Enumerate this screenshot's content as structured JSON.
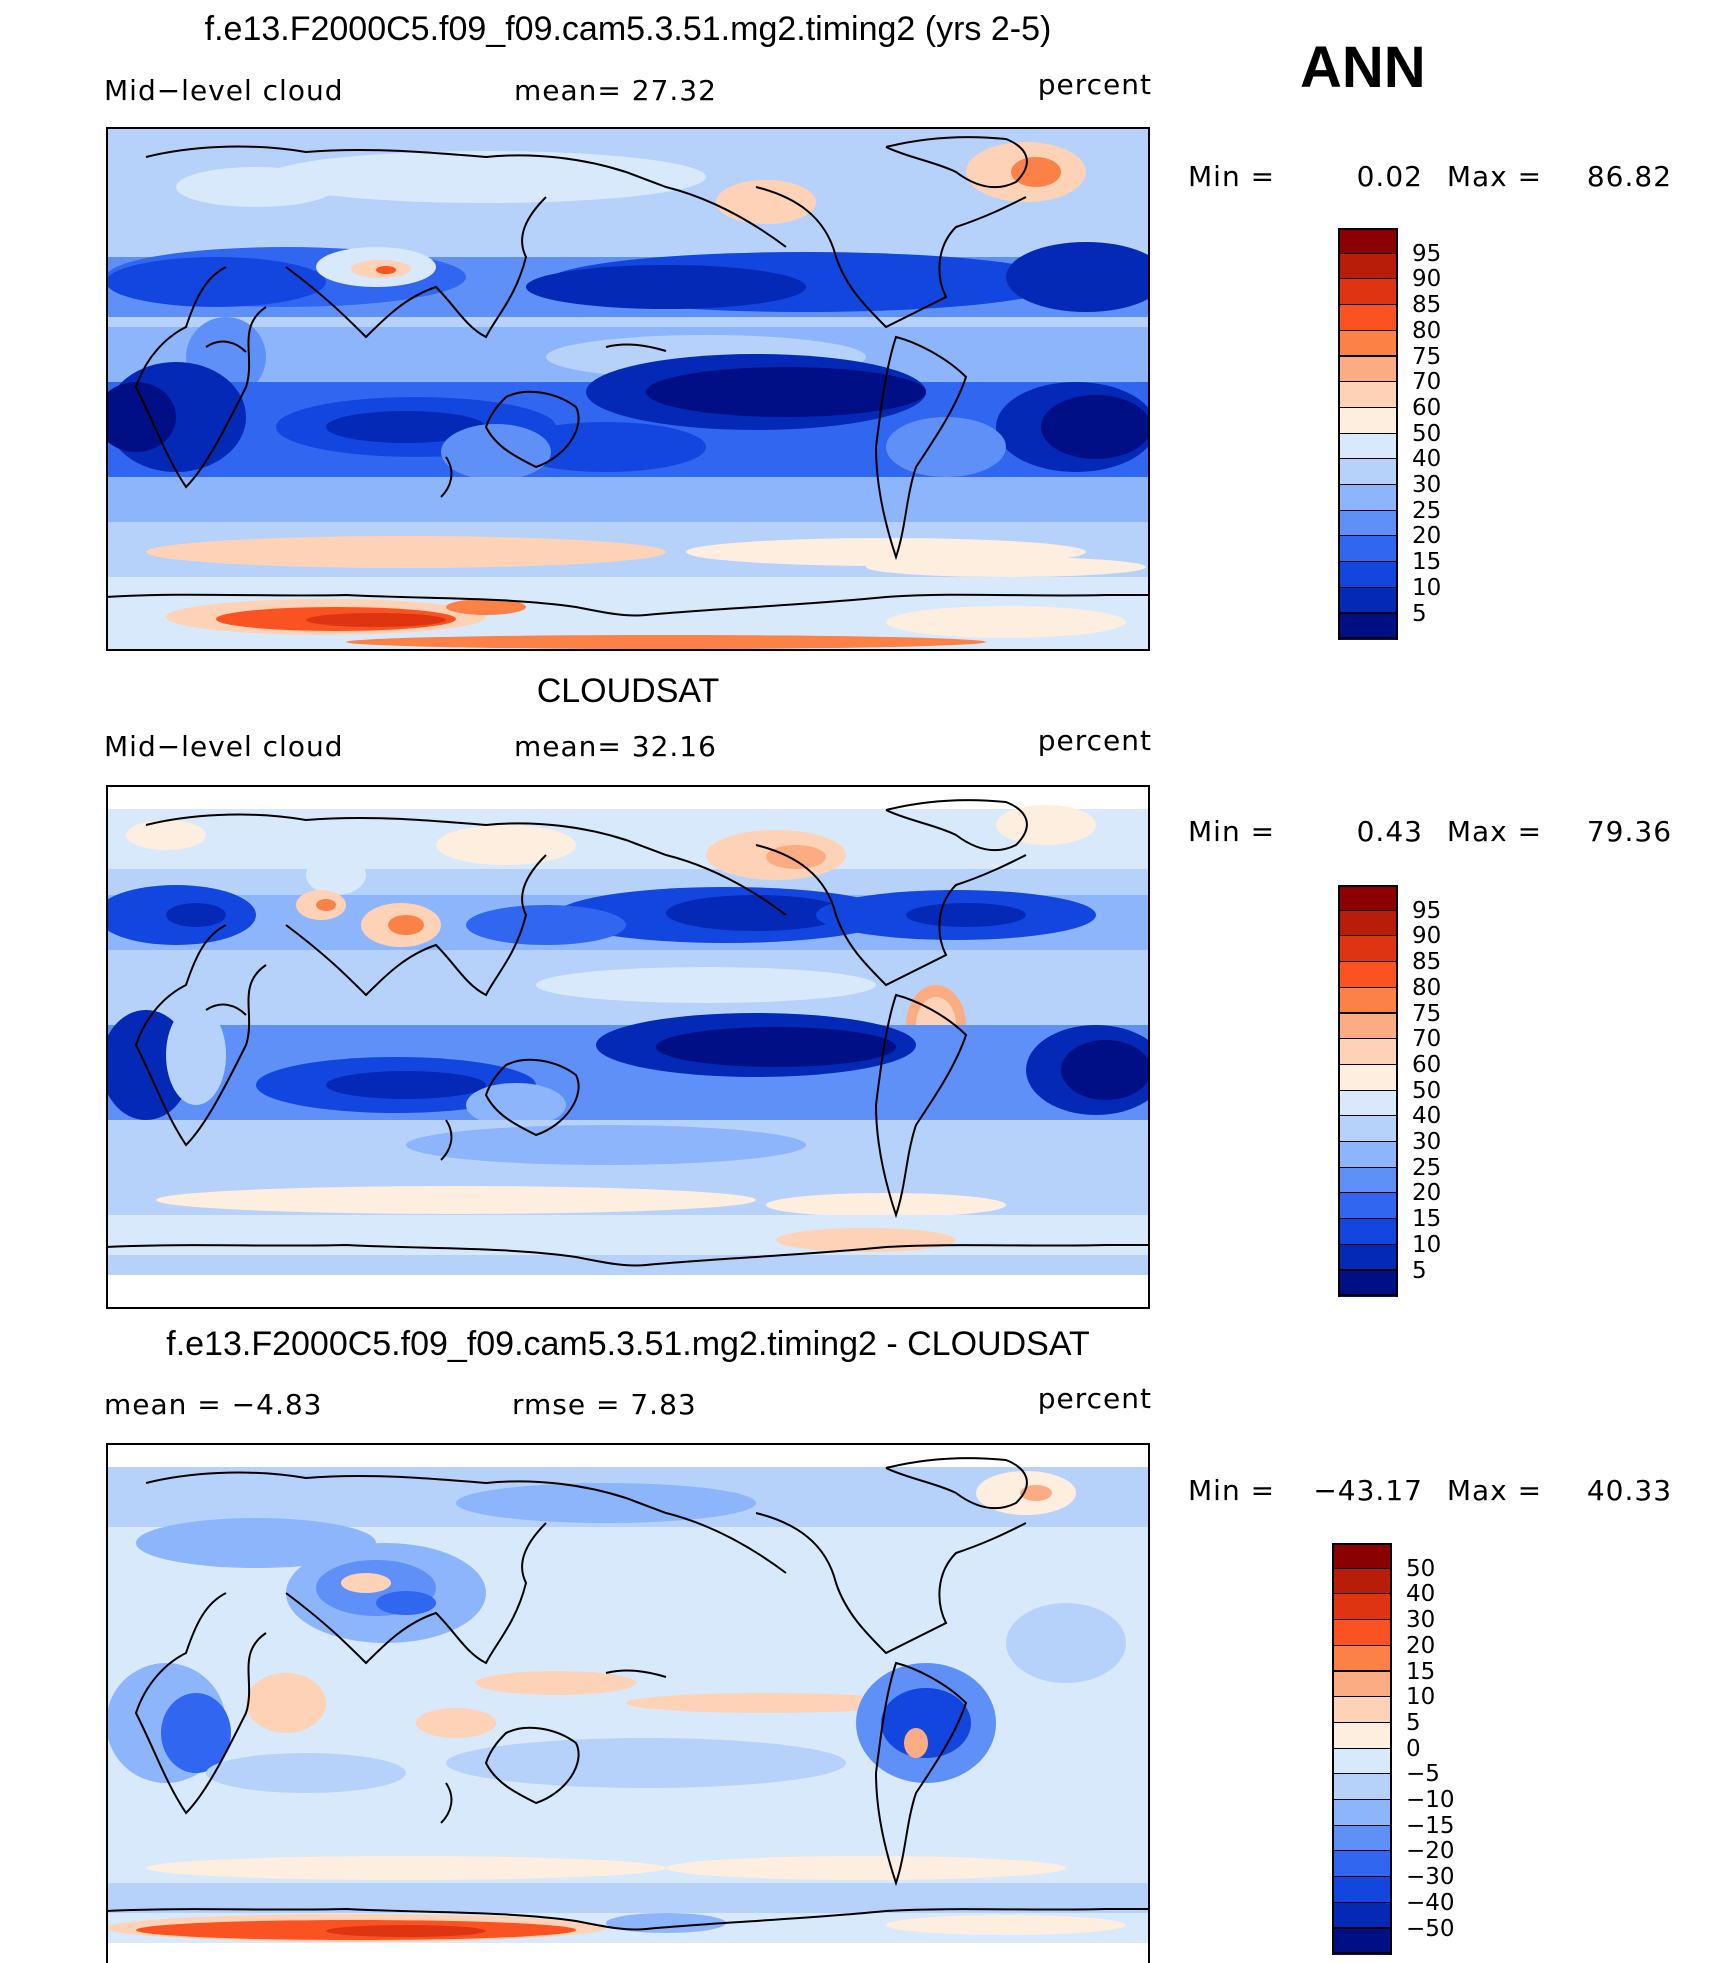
{
  "season": "ANN",
  "panels": [
    {
      "id": "model",
      "title": "f.e13.F2000C5.f09_f09.cam5.3.51.mg2.timing2 (yrs 2-5)",
      "left_label": "Mid−level  cloud",
      "center_label": "mean=   27.32",
      "right_label": "percent",
      "min_label": "Min  =",
      "min_value": "0.02",
      "max_label": "Max  =",
      "max_value": "86.82",
      "colorbar_ticks": [
        "95",
        "90",
        "85",
        "80",
        "75",
        "70",
        "60",
        "50",
        "40",
        "30",
        "25",
        "20",
        "15",
        "10",
        "5"
      ],
      "colorbar_colors": [
        "#8b0000",
        "#b81d0a",
        "#de3412",
        "#fa5220",
        "#fc8147",
        "#fcac82",
        "#fdd2b6",
        "#fdeedf",
        "#d8e9fb",
        "#b6d2fb",
        "#8db5fb",
        "#5f90f8",
        "#3066f0",
        "#1346df",
        "#0329b6",
        "#010f86"
      ]
    },
    {
      "id": "obs",
      "title": "CLOUDSAT",
      "left_label": "Mid−level  cloud",
      "center_label": "mean=   32.16",
      "right_label": "percent",
      "min_label": "Min  =",
      "min_value": "0.43",
      "max_label": "Max  =",
      "max_value": "79.36",
      "colorbar_ticks": [
        "95",
        "90",
        "85",
        "80",
        "75",
        "70",
        "60",
        "50",
        "40",
        "30",
        "25",
        "20",
        "15",
        "10",
        "5"
      ],
      "colorbar_colors": [
        "#8b0000",
        "#b81d0a",
        "#de3412",
        "#fa5220",
        "#fc8147",
        "#fcac82",
        "#fdd2b6",
        "#fdeedf",
        "#d8e9fb",
        "#b6d2fb",
        "#8db5fb",
        "#5f90f8",
        "#3066f0",
        "#1346df",
        "#0329b6",
        "#010f86"
      ]
    },
    {
      "id": "diff",
      "title": "f.e13.F2000C5.f09_f09.cam5.3.51.mg2.timing2 - CLOUDSAT",
      "left_label": "mean  =    −4.83",
      "center_label": "rmse  =     7.83",
      "right_label": "percent",
      "min_label": "Min  =",
      "min_value": "−43.17",
      "max_label": "Max  =",
      "max_value": "40.33",
      "colorbar_ticks": [
        "50",
        "40",
        "30",
        "20",
        "15",
        "10",
        "5",
        "0",
        "−5",
        "−10",
        "−15",
        "−20",
        "−30",
        "−40",
        "−50"
      ],
      "colorbar_colors": [
        "#8b0000",
        "#b81d0a",
        "#de3412",
        "#fa5220",
        "#fc8147",
        "#fcac82",
        "#fdd2b6",
        "#fdeedf",
        "#d8e9fb",
        "#b6d2fb",
        "#8db5fb",
        "#5f90f8",
        "#3066f0",
        "#1346df",
        "#0329b6",
        "#010f86"
      ]
    }
  ]
}
